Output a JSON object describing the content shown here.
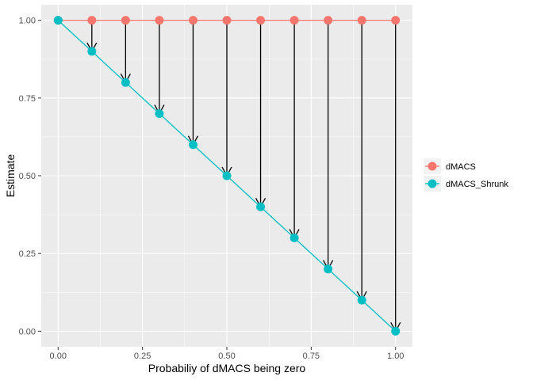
{
  "chart_data": {
    "type": "line",
    "xlabel": "Probabiliy of dMACS being zero",
    "ylabel": "Estimate",
    "xlim": [
      -0.05,
      1.05
    ],
    "ylim": [
      -0.05,
      1.05
    ],
    "x_ticks": [
      0.0,
      0.25,
      0.5,
      0.75,
      1.0
    ],
    "x_tick_labels": [
      "0.00",
      "0.25",
      "0.50",
      "0.75",
      "1.00"
    ],
    "y_ticks": [
      0.0,
      0.25,
      0.5,
      0.75,
      1.0
    ],
    "y_tick_labels": [
      "0.00",
      "0.25",
      "0.50",
      "0.75",
      "1.00"
    ],
    "x": [
      0.0,
      0.1,
      0.2,
      0.3,
      0.4,
      0.5,
      0.6,
      0.7,
      0.8,
      0.9,
      1.0
    ],
    "series": [
      {
        "name": "dMACS",
        "color": "#F8766D",
        "values": [
          1,
          1,
          1,
          1,
          1,
          1,
          1,
          1,
          1,
          1,
          1
        ]
      },
      {
        "name": "dMACS_Shrunk",
        "color": "#00BFC4",
        "values": [
          1.0,
          0.9,
          0.8,
          0.7,
          0.6,
          0.5,
          0.4,
          0.3,
          0.2,
          0.1,
          0.0
        ]
      }
    ],
    "arrows": {
      "from_series": "dMACS",
      "to_series": "dMACS_Shrunk",
      "color": "#000000"
    },
    "grid": true,
    "panel_background": "#EBEBEB",
    "legend_position": "right"
  }
}
